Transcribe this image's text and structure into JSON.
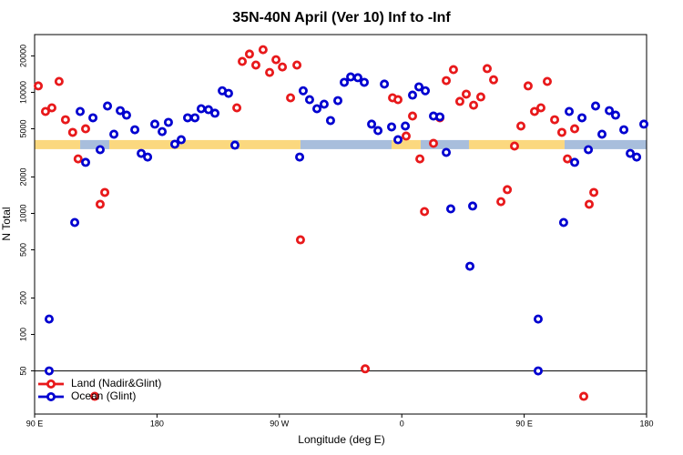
{
  "chart_data": {
    "type": "scatter",
    "title": "35N-40N April (Ver 10)   Inf to -Inf",
    "x_label": "Longitude (deg E)",
    "y_label": "N Total",
    "xlim": [
      90,
      540
    ],
    "ylim": [
      22,
      30000
    ],
    "log_y": true,
    "xticks": [
      {
        "value": 90,
        "label": "90 E"
      },
      {
        "value": 180,
        "label": "180"
      },
      {
        "value": 270,
        "label": "90 W"
      },
      {
        "value": 360,
        "label": "0"
      },
      {
        "value": 450,
        "label": "90 E"
      },
      {
        "value": 540,
        "label": "180"
      }
    ],
    "yticks": [
      50,
      100,
      200,
      500,
      1000,
      2000,
      5000,
      10000,
      20000
    ],
    "hline": 50,
    "legend": "bottom-left",
    "band": {
      "value": 3700,
      "segments": [
        {
          "x": [
            90,
            123.5
          ],
          "color": "#fbd87f"
        },
        {
          "x": [
            123.5,
            144.9
          ],
          "color": "#a8bedc"
        },
        {
          "x": [
            144.9,
            235.3
          ],
          "color": "#fbd87f"
        },
        {
          "x": [
            235.3,
            240
          ],
          "color": "#a8bedc"
        },
        {
          "x": [
            240,
            285.5
          ],
          "color": "#fbd87f"
        },
        {
          "x": [
            285.5,
            352.5
          ],
          "color": "#a8bedc"
        },
        {
          "x": [
            352.5,
            373.9
          ],
          "color": "#fbd87f"
        },
        {
          "x": [
            373.9,
            409.4
          ],
          "color": "#a8bedc"
        },
        {
          "x": [
            409.4,
            479.7
          ],
          "color": "#fbd87f"
        },
        {
          "x": [
            479.7,
            540
          ],
          "color": "#a8bedc"
        }
      ]
    },
    "series": [
      {
        "name": "Land (Nadir&Glint)",
        "color": "#e8191b",
        "x": [
          92.7,
          98,
          102.7,
          108,
          112.7,
          118,
          122,
          127.5,
          134.2,
          138.2,
          141.6,
          238.7,
          242.7,
          248,
          252.7,
          258,
          262.8,
          267.5,
          272.2,
          278.2,
          282.9,
          285.5,
          333.1,
          353.2,
          357.2,
          363.2,
          367.9,
          373.3,
          376.7,
          383.3,
          388,
          392.7,
          398,
          402.7,
          407.4,
          412.8,
          418.1,
          422.8,
          427.5,
          432.9,
          437.6,
          442.9,
          447.6,
          452.9,
          457.6,
          462.3,
          467,
          472.4,
          477.7,
          481.8,
          487.1,
          493.8,
          497.8,
          501.2
        ],
        "values": [
          11300,
          6950,
          7450,
          12300,
          5940,
          4670,
          2820,
          5000,
          30.8,
          1190,
          1490,
          7450,
          18000,
          20700,
          16800,
          22500,
          14600,
          18600,
          16200,
          9010,
          16800,
          605,
          52,
          9010,
          8700,
          4350,
          6370,
          2820,
          1035,
          3790,
          6160,
          12500,
          15400,
          8420,
          9660,
          7830,
          9160,
          15700,
          12700,
          1250,
          1570,
          3600,
          5270,
          11300,
          6950,
          7450,
          12300,
          5940,
          4670,
          2820,
          5000,
          30.8,
          1190,
          1490
        ]
      },
      {
        "name": "Ocean (Glint)",
        "color": "#0000d0",
        "x": [
          100.7,
          100.7,
          119.5,
          123.5,
          127.5,
          132.9,
          138.2,
          143.6,
          148.3,
          153,
          157.6,
          163.7,
          168.4,
          173.1,
          178.4,
          183.8,
          188.4,
          193.1,
          197.8,
          202.5,
          207.9,
          212.5,
          217.9,
          222.6,
          228,
          232.6,
          237.3,
          284.9,
          287.5,
          292.2,
          297.6,
          302.9,
          307.6,
          313,
          317.7,
          322.4,
          327.7,
          332.4,
          337.8,
          342.5,
          347.2,
          352.5,
          357.2,
          362.6,
          367.9,
          372.6,
          377.3,
          383.3,
          388,
          392.7,
          396,
          410.1,
          412.1,
          460.3,
          460.3,
          479,
          483.1,
          487.1,
          492.5,
          497.2,
          502.5,
          507.2,
          512.6,
          517.2,
          523.3,
          528,
          532.7,
          538
        ],
        "values": [
          134,
          50,
          841,
          6950,
          2640,
          6160,
          3360,
          7710,
          4510,
          7060,
          6480,
          4910,
          3130,
          2920,
          5460,
          4740,
          5650,
          3730,
          4060,
          6160,
          6160,
          7320,
          7190,
          6720,
          10300,
          9810,
          3660,
          2920,
          10300,
          8700,
          7320,
          7980,
          5850,
          8540,
          12100,
          13400,
          13200,
          12100,
          5460,
          4830,
          11700,
          5180,
          4060,
          5270,
          9480,
          11100,
          10300,
          6370,
          6270,
          3190,
          1090,
          366,
          1150,
          134,
          50,
          841,
          6950,
          2640,
          6160,
          3360,
          7710,
          4510,
          7060,
          6480,
          4910,
          3130,
          2920,
          5460
        ]
      }
    ]
  }
}
